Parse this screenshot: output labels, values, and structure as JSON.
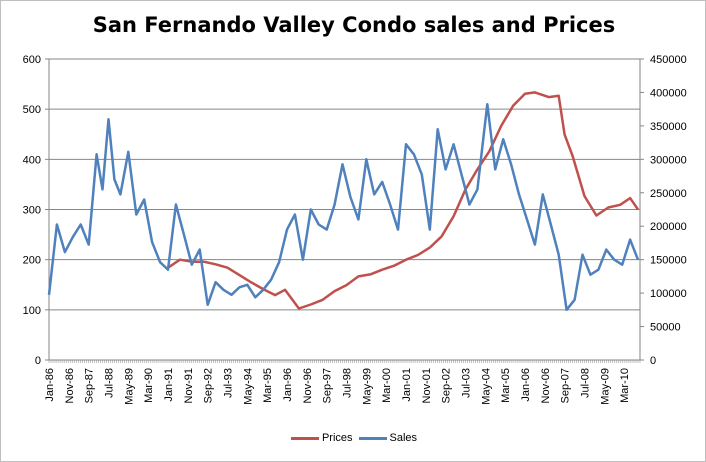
{
  "chart_data": {
    "type": "line",
    "title": "San Fernando Valley Condo sales and Prices",
    "xlabel": "",
    "ylabel": "",
    "y_left": {
      "min": 0,
      "max": 600,
      "ticks": [
        "0",
        "100",
        "200",
        "300",
        "400",
        "500",
        "600"
      ]
    },
    "y_right": {
      "min": 0,
      "max": 450000,
      "ticks": [
        "0",
        "50000",
        "100000",
        "150000",
        "200000",
        "250000",
        "300000",
        "350000",
        "400000",
        "450000"
      ]
    },
    "x_ticks": [
      "Jan-86",
      "Nov-86",
      "Sep-87",
      "Jul-88",
      "May-89",
      "Mar-90",
      "Jan-91",
      "Nov-91",
      "Sep-92",
      "Jul-93",
      "May-94",
      "Mar-95",
      "Jan-96",
      "Nov-96",
      "Sep-97",
      "Jul-98",
      "May-99",
      "Mar-00",
      "Jan-01",
      "Nov-01",
      "Sep-02",
      "Jul-03",
      "May-04",
      "Mar-05",
      "Jan-06",
      "Nov-06",
      "Sep-07",
      "Jul-08",
      "May-09",
      "Mar-10"
    ],
    "x_range": [
      "Jan-86",
      "Nov-10"
    ],
    "grid": true,
    "legend_position": "bottom",
    "series": [
      {
        "name": "Prices",
        "axis": "right",
        "color": "#c0504d",
        "x": [
          "Jan-91",
          "Jul-91",
          "Jan-92",
          "Jul-92",
          "Jan-93",
          "Jul-93",
          "Jan-94",
          "Jul-94",
          "Jan-95",
          "Jul-95",
          "Dec-95",
          "Jul-96",
          "Jan-97",
          "Jul-97",
          "Jan-98",
          "Jul-98",
          "Jan-99",
          "Jul-99",
          "Jan-00",
          "Jul-00",
          "Jan-01",
          "Jul-01",
          "Jan-02",
          "Jul-02",
          "Jan-03",
          "Jul-03",
          "Jan-04",
          "Jul-04",
          "Jan-05",
          "Jul-05",
          "Jan-06",
          "Jun-06",
          "Jan-07",
          "Jun-07",
          "Sep-07",
          "Jan-08",
          "Jul-08",
          "Jan-09",
          "Jul-09",
          "Jan-10",
          "Jun-10",
          "Oct-10"
        ],
        "values": [
          138000,
          150000,
          147000,
          147000,
          143000,
          138000,
          127000,
          116000,
          106000,
          97000,
          105000,
          77000,
          83000,
          90000,
          103000,
          112000,
          125000,
          128000,
          135000,
          141000,
          150000,
          157000,
          168000,
          185000,
          215000,
          255000,
          285000,
          312000,
          350000,
          380000,
          398000,
          400000,
          393000,
          395000,
          337000,
          305000,
          245000,
          216000,
          228000,
          232000,
          242000,
          225000
        ]
      },
      {
        "name": "Sales",
        "axis": "left",
        "color": "#4f81bd",
        "x": [
          "Jan-86",
          "May-86",
          "Sep-86",
          "Jan-87",
          "May-87",
          "Sep-87",
          "Jan-88",
          "Apr-88",
          "Jul-88",
          "Oct-88",
          "Jan-89",
          "May-89",
          "Sep-89",
          "Jan-90",
          "May-90",
          "Sep-90",
          "Jan-91",
          "May-91",
          "Sep-91",
          "Jan-92",
          "May-92",
          "Sep-92",
          "Jan-93",
          "May-93",
          "Sep-93",
          "Jan-94",
          "May-94",
          "Sep-94",
          "Jan-95",
          "May-95",
          "Sep-95",
          "Jan-96",
          "May-96",
          "Sep-96",
          "Jan-97",
          "May-97",
          "Sep-97",
          "Jan-98",
          "May-98",
          "Sep-98",
          "Jan-99",
          "May-99",
          "Sep-99",
          "Jan-00",
          "May-00",
          "Sep-00",
          "Jan-01",
          "May-01",
          "Sep-01",
          "Jan-02",
          "May-02",
          "Sep-02",
          "Jan-03",
          "May-03",
          "Sep-03",
          "Jan-04",
          "Jun-04",
          "Oct-04",
          "Feb-05",
          "Jun-05",
          "Oct-05",
          "Feb-06",
          "Jun-06",
          "Oct-06",
          "Feb-07",
          "Jun-07",
          "Oct-07",
          "Feb-08",
          "Jun-08",
          "Oct-08",
          "Feb-09",
          "Jun-09",
          "Oct-09",
          "Feb-10",
          "Jun-10",
          "Oct-10"
        ],
        "values": [
          130,
          270,
          215,
          245,
          270,
          230,
          410,
          340,
          480,
          360,
          330,
          415,
          290,
          320,
          235,
          195,
          180,
          310,
          250,
          190,
          220,
          110,
          155,
          140,
          130,
          145,
          150,
          125,
          140,
          160,
          195,
          260,
          290,
          200,
          300,
          270,
          260,
          310,
          390,
          325,
          280,
          400,
          330,
          355,
          310,
          260,
          430,
          410,
          370,
          260,
          460,
          380,
          430,
          370,
          310,
          340,
          510,
          380,
          440,
          390,
          330,
          280,
          230,
          330,
          270,
          210,
          100,
          120,
          210,
          170,
          180,
          220,
          200,
          190,
          240,
          200
        ]
      }
    ]
  }
}
